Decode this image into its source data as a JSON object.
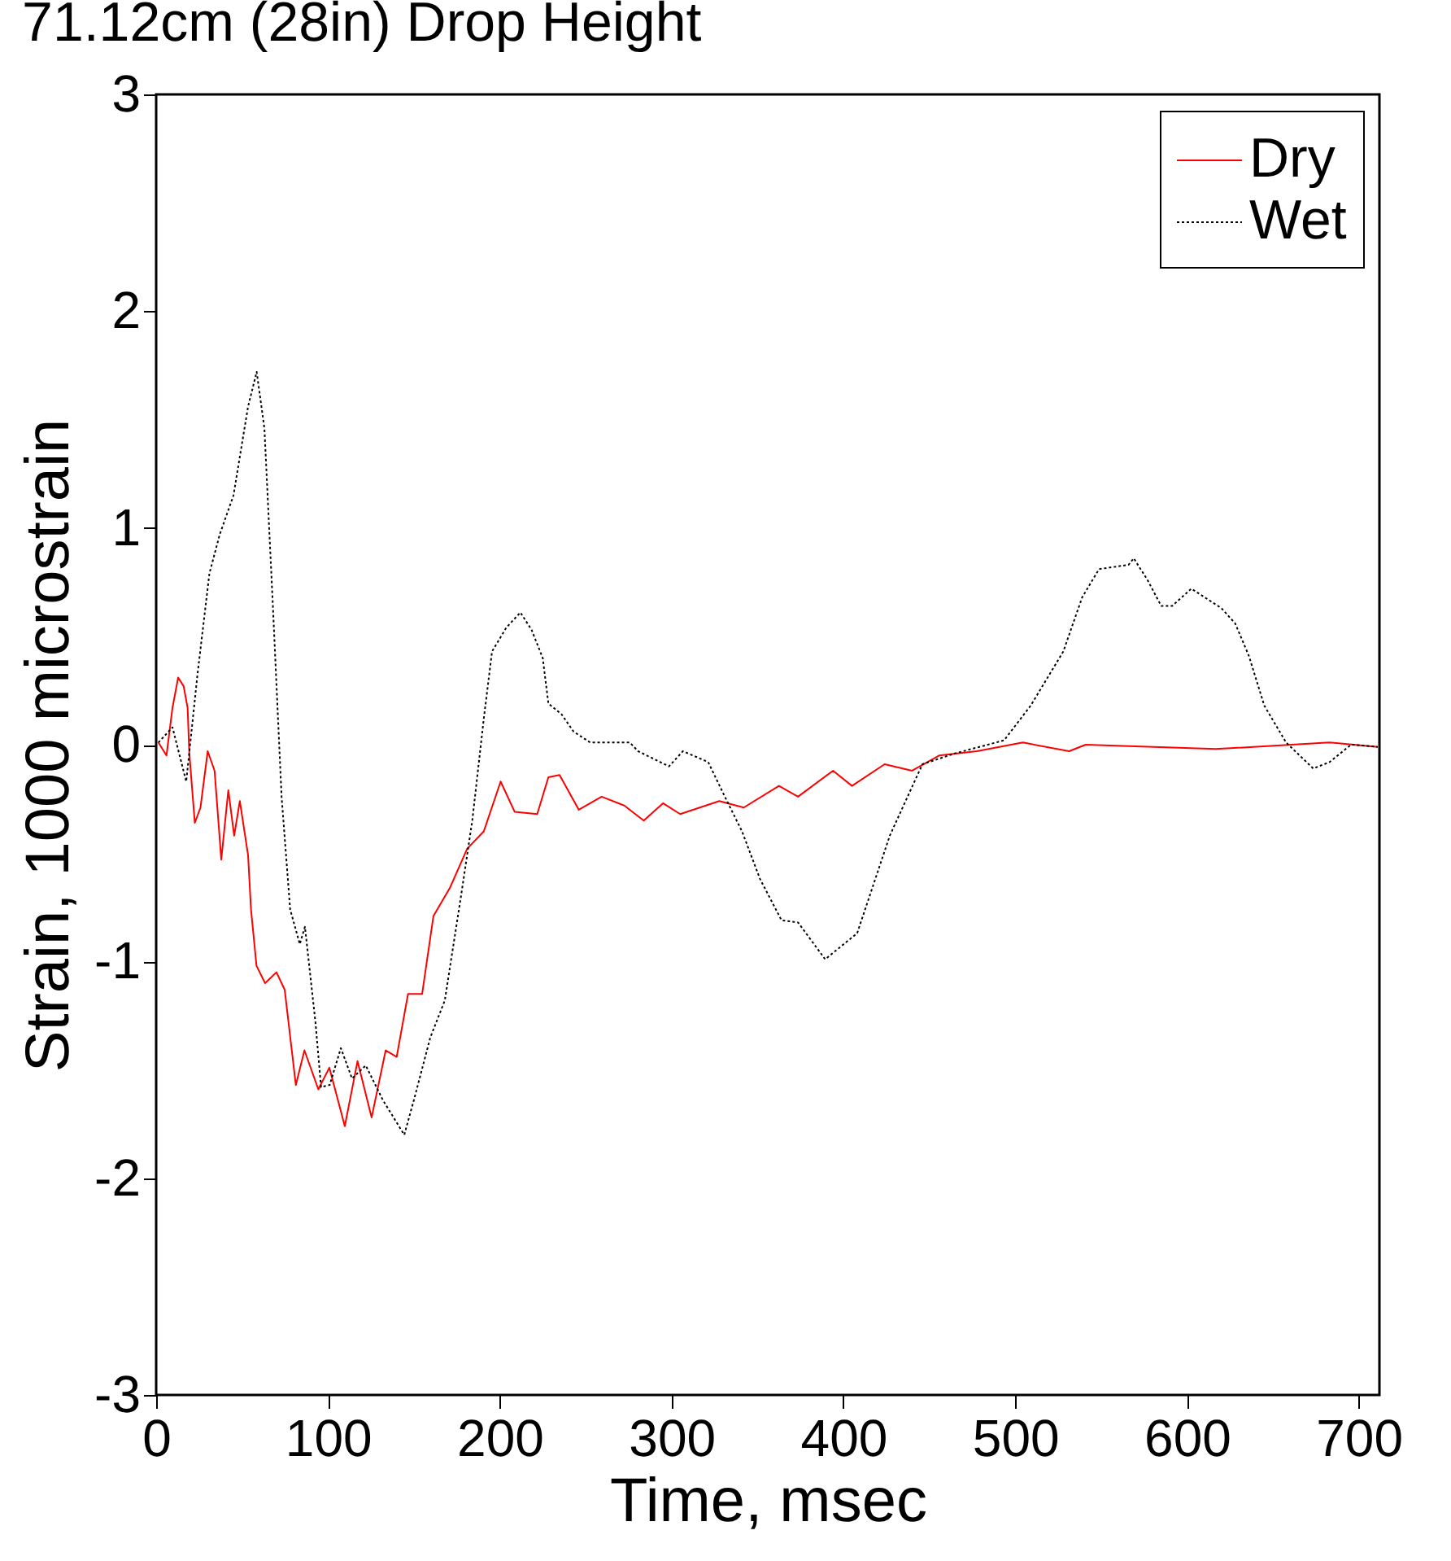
{
  "chart_data": {
    "type": "line",
    "title": "71.12cm (28in) Drop Height",
    "xlabel": "Time, msec",
    "ylabel": "Strain, 1000 microstrain",
    "xlim": [
      0,
      712
    ],
    "xticks": [
      0,
      100,
      200,
      300,
      400,
      500,
      600,
      700
    ],
    "ylim": [
      -3,
      3
    ],
    "yticks": [
      -3,
      -2,
      -1,
      0,
      1,
      2,
      3
    ],
    "grid": false,
    "legend": "top right",
    "marker": "none",
    "series": [
      {
        "name": "Dry",
        "color": "#ff0000",
        "line_style": "solid",
        "x": [
          1.3,
          6,
          9.5,
          12.8,
          16,
          18.3,
          19.3,
          22.5,
          25.8,
          30,
          34,
          37.9,
          42,
          45.4,
          48.7,
          53.5,
          55.2,
          58.4,
          63.4,
          70,
          74.8,
          81.3,
          86.3,
          94.4,
          100.8,
          109.8,
          117.2,
          125.4,
          133.6,
          140,
          146.6,
          154.8,
          161.4,
          171,
          181,
          190.7,
          200.5,
          208.7,
          221.8,
          228.3,
          234.8,
          246,
          259.3,
          272.3,
          283.8,
          295,
          305,
          327.8,
          342,
          362.5,
          373.6,
          394,
          405,
          424,
          440,
          455.7,
          477.7,
          504.5,
          531.4,
          541,
          616.7,
          683,
          711
        ],
        "values": [
          0.01,
          -0.05,
          0.17,
          0.31,
          0.27,
          0.17,
          -0.04,
          -0.36,
          -0.29,
          -0.03,
          -0.12,
          -0.53,
          -0.21,
          -0.42,
          -0.26,
          -0.51,
          -0.76,
          -1.02,
          -1.1,
          -1.05,
          -1.13,
          -1.57,
          -1.41,
          -1.59,
          -1.49,
          -1.76,
          -1.46,
          -1.72,
          -1.41,
          -1.44,
          -1.15,
          -1.15,
          -0.79,
          -0.66,
          -0.48,
          -0.4,
          -0.17,
          -0.31,
          -0.32,
          -0.15,
          -0.14,
          -0.3,
          -0.24,
          -0.28,
          -0.35,
          -0.27,
          -0.32,
          -0.26,
          -0.29,
          -0.19,
          -0.24,
          -0.12,
          -0.19,
          -0.09,
          -0.12,
          -0.05,
          -0.03,
          0.01,
          -0.03,
          0.0,
          -0.02,
          0.01,
          -0.01
        ]
      },
      {
        "name": "Wet",
        "color": "#000000",
        "line_style": "dotted",
        "x": [
          1.3,
          9.5,
          17.5,
          24,
          31,
          37,
          45,
          53.5,
          58.5,
          63,
          68,
          73,
          78,
          83.6,
          86.6,
          92.7,
          96,
          101,
          107.5,
          114,
          122,
          132,
          144.4,
          150,
          159.6,
          168,
          177.6,
          184,
          190.7,
          195.5,
          203.8,
          212,
          218.5,
          225,
          228.3,
          236,
          243,
          252.7,
          275.7,
          280.5,
          298.5,
          306.6,
          321.3,
          331,
          341,
          351.5,
          364,
          373.6,
          389.4,
          408,
          427,
          446,
          465,
          493.5,
          509,
          528,
          539,
          548.8,
          566,
          569,
          577,
          585,
          591.4,
          602.5,
          620,
          628,
          636,
          645,
          657.7,
          673.5,
          683,
          695.5,
          711
        ],
        "values": [
          0.01,
          0.08,
          -0.17,
          0.32,
          0.79,
          0.97,
          1.15,
          1.56,
          1.72,
          1.46,
          0.63,
          -0.24,
          -0.76,
          -0.92,
          -0.84,
          -1.28,
          -1.58,
          -1.57,
          -1.4,
          -1.54,
          -1.48,
          -1.64,
          -1.8,
          -1.64,
          -1.35,
          -1.18,
          -0.69,
          -0.35,
          0.12,
          0.43,
          0.54,
          0.61,
          0.53,
          0.4,
          0.19,
          0.14,
          0.06,
          0.01,
          0.01,
          -0.03,
          -0.1,
          -0.03,
          -0.08,
          -0.24,
          -0.4,
          -0.62,
          -0.81,
          -0.82,
          -0.99,
          -0.87,
          -0.42,
          -0.09,
          -0.04,
          0.02,
          0.18,
          0.43,
          0.68,
          0.81,
          0.83,
          0.86,
          0.76,
          0.64,
          0.64,
          0.72,
          0.63,
          0.56,
          0.41,
          0.18,
          0.01,
          -0.11,
          -0.08,
          0.0,
          -0.01
        ]
      }
    ]
  }
}
